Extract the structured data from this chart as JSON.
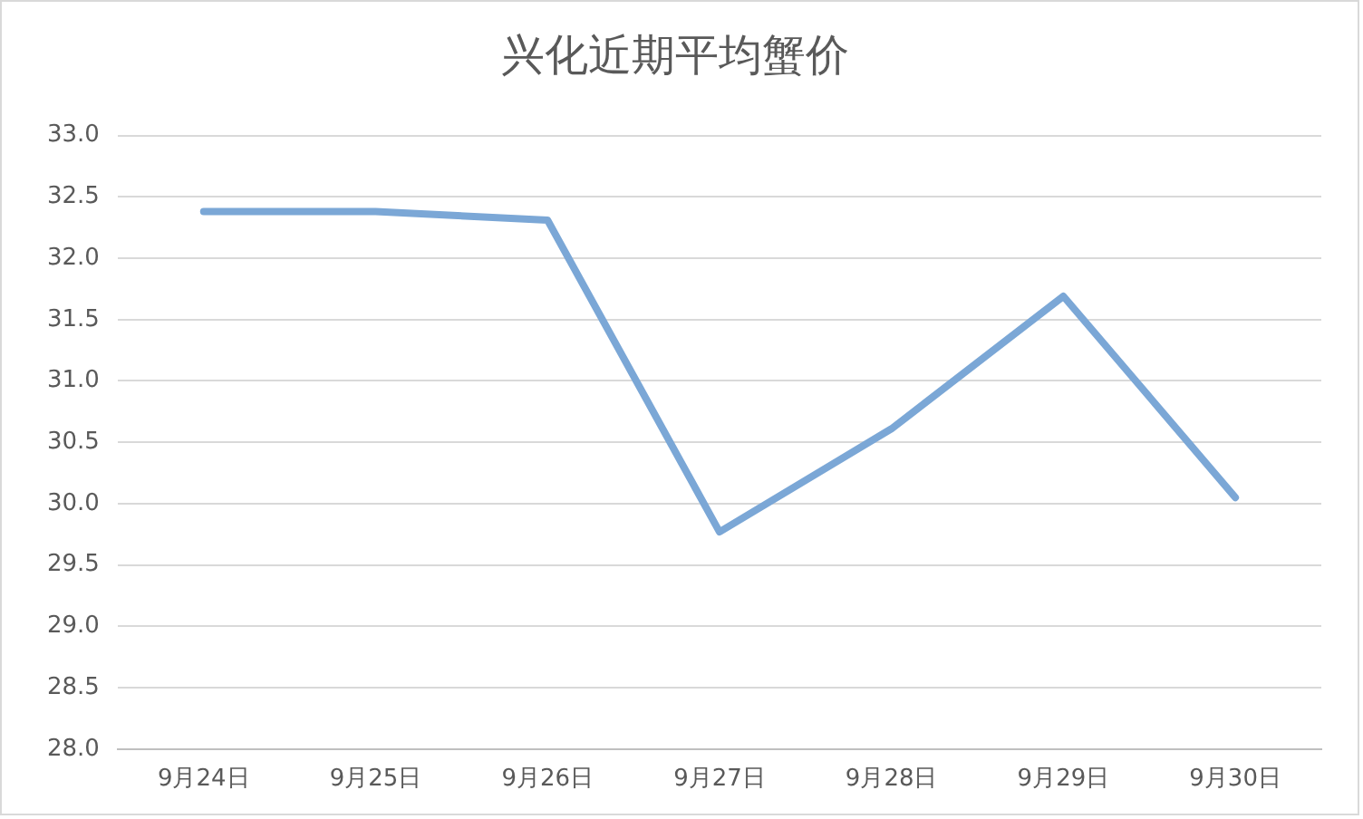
{
  "chart_data": {
    "type": "line",
    "title": "兴化近期平均蟹价",
    "categories": [
      "9月24日",
      "9月25日",
      "9月26日",
      "9月27日",
      "9月28日",
      "9月29日",
      "9月30日"
    ],
    "series": [
      {
        "color": "#7ba7d6",
        "values": [
          32.38,
          32.38,
          32.31,
          29.77,
          30.61,
          31.69,
          30.05
        ]
      }
    ],
    "ylim": [
      28,
      33
    ],
    "yticks": [
      {
        "value": 28,
        "label": "28.0"
      },
      {
        "value": 28.5,
        "label": "28.5"
      },
      {
        "value": 29,
        "label": "29.0"
      },
      {
        "value": 29.5,
        "label": "29.5"
      },
      {
        "value": 30,
        "label": "30.0"
      },
      {
        "value": 30.5,
        "label": "30.5"
      },
      {
        "value": 31,
        "label": "31.0"
      },
      {
        "value": 31.5,
        "label": "31.5"
      },
      {
        "value": 32,
        "label": "32.0"
      },
      {
        "value": 32.5,
        "label": "32.5"
      },
      {
        "value": 33,
        "label": "33.0"
      }
    ],
    "grid": "y",
    "legend": false,
    "marker": "none",
    "line_style": "solid"
  }
}
